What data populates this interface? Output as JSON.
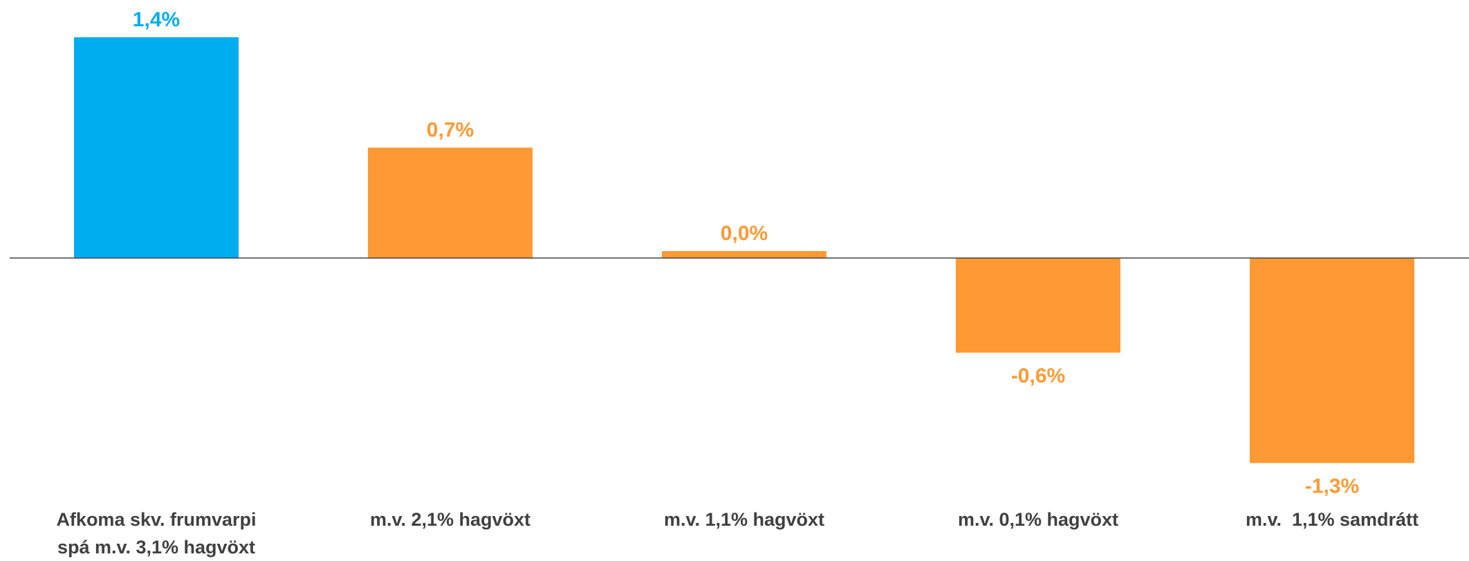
{
  "chart_data": {
    "type": "bar",
    "categories": [
      [
        "Afkoma skv. frumvarpi",
        "spá m.v. 3,1% hagvöxt"
      ],
      [
        "m.v. 2,1% hagvöxt"
      ],
      [
        "m.v. 1,1% hagvöxt"
      ],
      [
        "m.v. 0,1% hagvöxt"
      ],
      [
        "m.v.  1,1% samdrátt"
      ]
    ],
    "values": [
      1.4,
      0.7,
      0.0,
      -0.6,
      -1.3
    ],
    "data_labels": [
      "1,4%",
      "0,7%",
      "0,0%",
      "-0,6%",
      "-1,3%"
    ],
    "colors": [
      "#00AEEF",
      "#FF9933",
      "#FF9933",
      "#FF9933",
      "#FF9933"
    ],
    "title": "",
    "xlabel": "",
    "ylabel": "",
    "ylim": [
      -1.3,
      1.4
    ],
    "grid": false,
    "legend": "none",
    "axis_line_color": "#404040"
  }
}
